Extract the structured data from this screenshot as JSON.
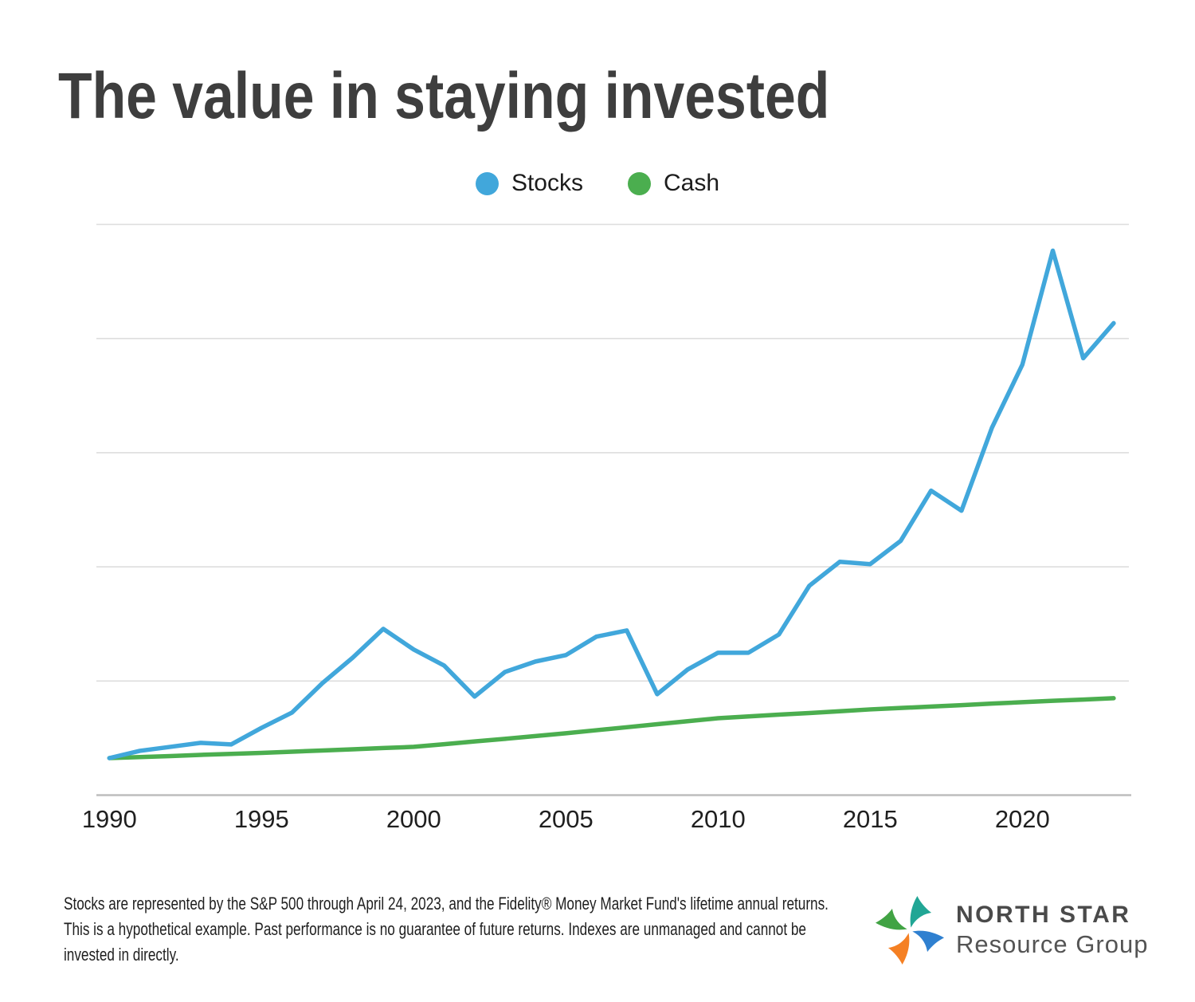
{
  "title": "The value in staying invested",
  "chart_data": {
    "type": "line",
    "title": "The value in staying invested",
    "xlabel": "",
    "ylabel": "",
    "x": [
      1990,
      1991,
      1992,
      1993,
      1994,
      1995,
      1996,
      1997,
      1998,
      1999,
      2000,
      2001,
      2002,
      2003,
      2004,
      2005,
      2006,
      2007,
      2008,
      2009,
      2010,
      2011,
      2012,
      2013,
      2014,
      2015,
      2016,
      2017,
      2018,
      2019,
      2020,
      2021,
      2022,
      2023
    ],
    "x_tick_labels": [
      "1990",
      "1995",
      "2000",
      "2005",
      "2010",
      "2015",
      "2020"
    ],
    "units": "growth multiple of initial investment (estimated; y-axis is unlabeled)",
    "series": [
      {
        "name": "Stocks",
        "color": "#41a7db",
        "values": [
          1.0,
          1.36,
          1.56,
          1.76,
          1.68,
          2.51,
          3.27,
          4.74,
          6.02,
          7.45,
          6.42,
          5.62,
          4.07,
          5.3,
          5.82,
          6.14,
          7.06,
          7.37,
          4.19,
          5.42,
          6.26,
          6.26,
          7.17,
          9.6,
          10.8,
          10.68,
          11.84,
          14.35,
          13.35,
          17.49,
          20.64,
          26.33,
          20.96,
          22.71
        ]
      },
      {
        "name": "Cash",
        "color": "#4bae4f",
        "values": [
          1.0,
          1.05,
          1.1,
          1.16,
          1.21,
          1.26,
          1.32,
          1.38,
          1.44,
          1.5,
          1.56,
          1.69,
          1.83,
          1.96,
          2.1,
          2.24,
          2.39,
          2.54,
          2.69,
          2.84,
          2.99,
          3.08,
          3.17,
          3.25,
          3.34,
          3.43,
          3.5,
          3.57,
          3.64,
          3.72,
          3.79,
          3.86,
          3.92,
          3.99
        ]
      }
    ],
    "x_range": [
      1990,
      2023
    ],
    "grid": "horizontal gridlines only, no y-axis tick labels",
    "legend_position": "top-center",
    "key_features": {
      "peak_1999": 7.45,
      "trough_2002": 4.07,
      "peak_2007": 7.37,
      "trough_2008": 4.19,
      "peak_2021": 26.33,
      "trough_2022": 20.96,
      "end_2023": 22.71
    }
  },
  "colors": {
    "stocks_line": "#41a7db",
    "cash_line": "#4bae4f",
    "gridline": "#dddddd",
    "axis_line": "#bdbdbd",
    "title_text": "#3e3e3e",
    "logo_teal": "#21a695",
    "logo_blue": "#2f80d0",
    "logo_orange": "#f58023",
    "logo_green": "#41a344"
  },
  "footnote": {
    "lines": [
      "Stocks are represented by the S&P 500 through April 24, 2023, and the Fidelity® Money Market Fund's lifetime annual returns.",
      "This is a hypothetical example. Past performance is no guarantee of future returns. Indexes are unmanaged and cannot be",
      "invested in directly."
    ]
  },
  "logo": {
    "name": "NORTH STAR",
    "subtitle": "Resource Group"
  }
}
